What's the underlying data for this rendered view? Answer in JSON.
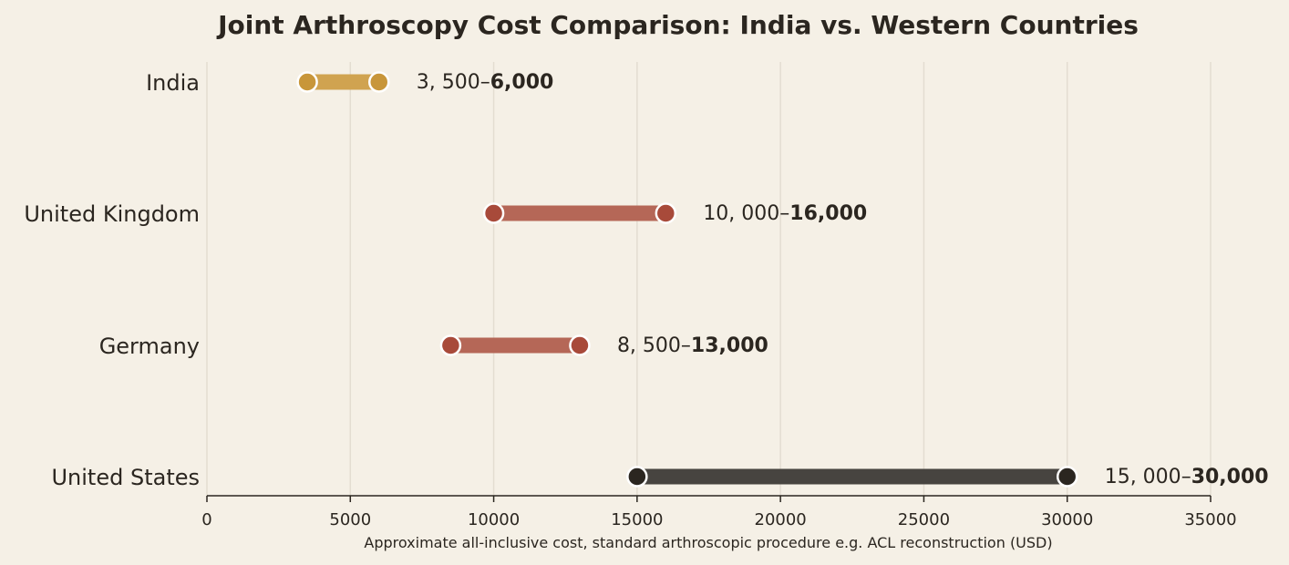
{
  "chart_data": {
    "type": "range-bar",
    "title": "Joint Arthroscopy Cost Comparison: India vs. Western Countries",
    "xlabel": "Approximate all-inclusive cost, standard arthroscopic procedure e.g. ACL reconstruction (USD)",
    "ylabel": "",
    "xlim": [
      0,
      35000
    ],
    "xticks": [
      0,
      5000,
      10000,
      15000,
      20000,
      25000,
      30000,
      35000
    ],
    "grid": "vertical",
    "categories": [
      "India",
      "United Kingdom",
      "Germany",
      "United States"
    ],
    "ranges": [
      {
        "country": "India",
        "low": 3500,
        "high": 6000,
        "low_label": "3, 500",
        "high_label": "6,000",
        "color": "#c8963a",
        "bar_color": "#d0a350"
      },
      {
        "country": "United Kingdom",
        "low": 10000,
        "high": 16000,
        "low_label": "10, 000",
        "high_label": "16,000",
        "color": "#a84a3a",
        "bar_color": "#b56757"
      },
      {
        "country": "Germany",
        "low": 8500,
        "high": 13000,
        "low_label": "8, 500",
        "high_label": "13,000",
        "color": "#a84a3a",
        "bar_color": "#b56757"
      },
      {
        "country": "United States",
        "low": 15000,
        "high": 30000,
        "low_label": "15, 000",
        "high_label": "30,000",
        "color": "#2b2620",
        "bar_color": "#474440"
      }
    ],
    "label_separator": "–"
  }
}
